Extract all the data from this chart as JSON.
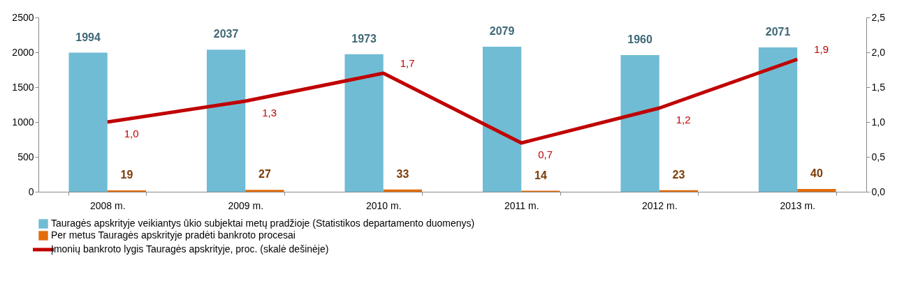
{
  "chart_data": {
    "type": "bar",
    "categories": [
      "2008 m.",
      "2009 m.",
      "2010 m.",
      "2011 m.",
      "2012 m.",
      "2013 m."
    ],
    "series": [
      {
        "name": "Tauragės apskrityje veikiantys ūkio subjektai metų pradžioje (Statistikos departamento duomenys)",
        "color": "#70bcd4",
        "values": [
          1994,
          2037,
          1973,
          2079,
          1960,
          2071
        ],
        "value_labels": [
          "1994",
          "2037",
          "1973",
          "2079",
          "1960",
          "2071"
        ]
      },
      {
        "name": "Per metus Tauragės apskrityje pradėti bankroto procesai",
        "color": "#e46c0a",
        "values": [
          19,
          27,
          33,
          14,
          23,
          40
        ],
        "value_labels": [
          "19",
          "27",
          "33",
          "14",
          "23",
          "40"
        ]
      },
      {
        "name": "Įmonių bankroto lygis Tauragės apskrityje, proc. (skalė dešinėje)",
        "type": "line",
        "axis": "y2",
        "color": "#c00000",
        "values": [
          1.0,
          1.3,
          1.7,
          0.7,
          1.2,
          1.9
        ],
        "value_labels": [
          "1,0",
          "1,3",
          "1,7",
          "0,7",
          "1,2",
          "1,9"
        ]
      }
    ],
    "ylim": [
      0,
      2500
    ],
    "yticks": [
      0,
      500,
      1000,
      1500,
      2000,
      2500
    ],
    "y2lim": [
      0,
      2.5
    ],
    "y2ticks": [
      {
        "value": 0,
        "label": "0,0"
      },
      {
        "value": 0.5,
        "label": "0,5"
      },
      {
        "value": 1,
        "label": "1,0"
      },
      {
        "value": 1.5,
        "label": "1,5"
      },
      {
        "value": 2,
        "label": "2,0"
      },
      {
        "value": 2.5,
        "label": "2,5"
      }
    ],
    "legend": "bottom"
  }
}
